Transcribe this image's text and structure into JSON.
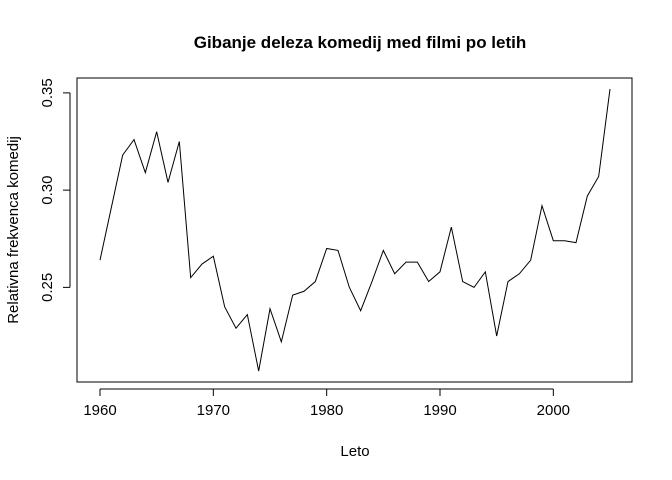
{
  "chart_data": {
    "type": "line",
    "title": "Gibanje deleza komedij med filmi po letih",
    "xlabel": "Leto",
    "ylabel": "Relativna frekvenca komedij",
    "xlim": [
      1960,
      2005
    ],
    "ylim": [
      0.207,
      0.352
    ],
    "xticks": [
      "1960",
      "1970",
      "1980",
      "1990",
      "2000"
    ],
    "yticks": [
      "0.25",
      "0.30",
      "0.35"
    ],
    "grid": false,
    "legend": "none",
    "line_color": "#000000",
    "x": [
      1960,
      1961,
      1962,
      1963,
      1964,
      1965,
      1966,
      1967,
      1968,
      1969,
      1970,
      1971,
      1972,
      1973,
      1974,
      1975,
      1976,
      1977,
      1978,
      1979,
      1980,
      1981,
      1982,
      1983,
      1984,
      1985,
      1986,
      1987,
      1988,
      1989,
      1990,
      1991,
      1992,
      1993,
      1994,
      1995,
      1996,
      1997,
      1998,
      1999,
      2000,
      2001,
      2002,
      2003,
      2004,
      2005
    ],
    "y": [
      0.264,
      0.291,
      0.318,
      0.326,
      0.309,
      0.33,
      0.304,
      0.325,
      0.255,
      0.262,
      0.266,
      0.24,
      0.229,
      0.236,
      0.207,
      0.239,
      0.222,
      0.246,
      0.248,
      0.253,
      0.27,
      0.269,
      0.25,
      0.238,
      0.253,
      0.269,
      0.257,
      0.263,
      0.263,
      0.253,
      0.258,
      0.281,
      0.253,
      0.25,
      0.258,
      0.225,
      0.253,
      0.257,
      0.264,
      0.292,
      0.274,
      0.274,
      0.273,
      0.297,
      0.307,
      0.352
    ]
  }
}
